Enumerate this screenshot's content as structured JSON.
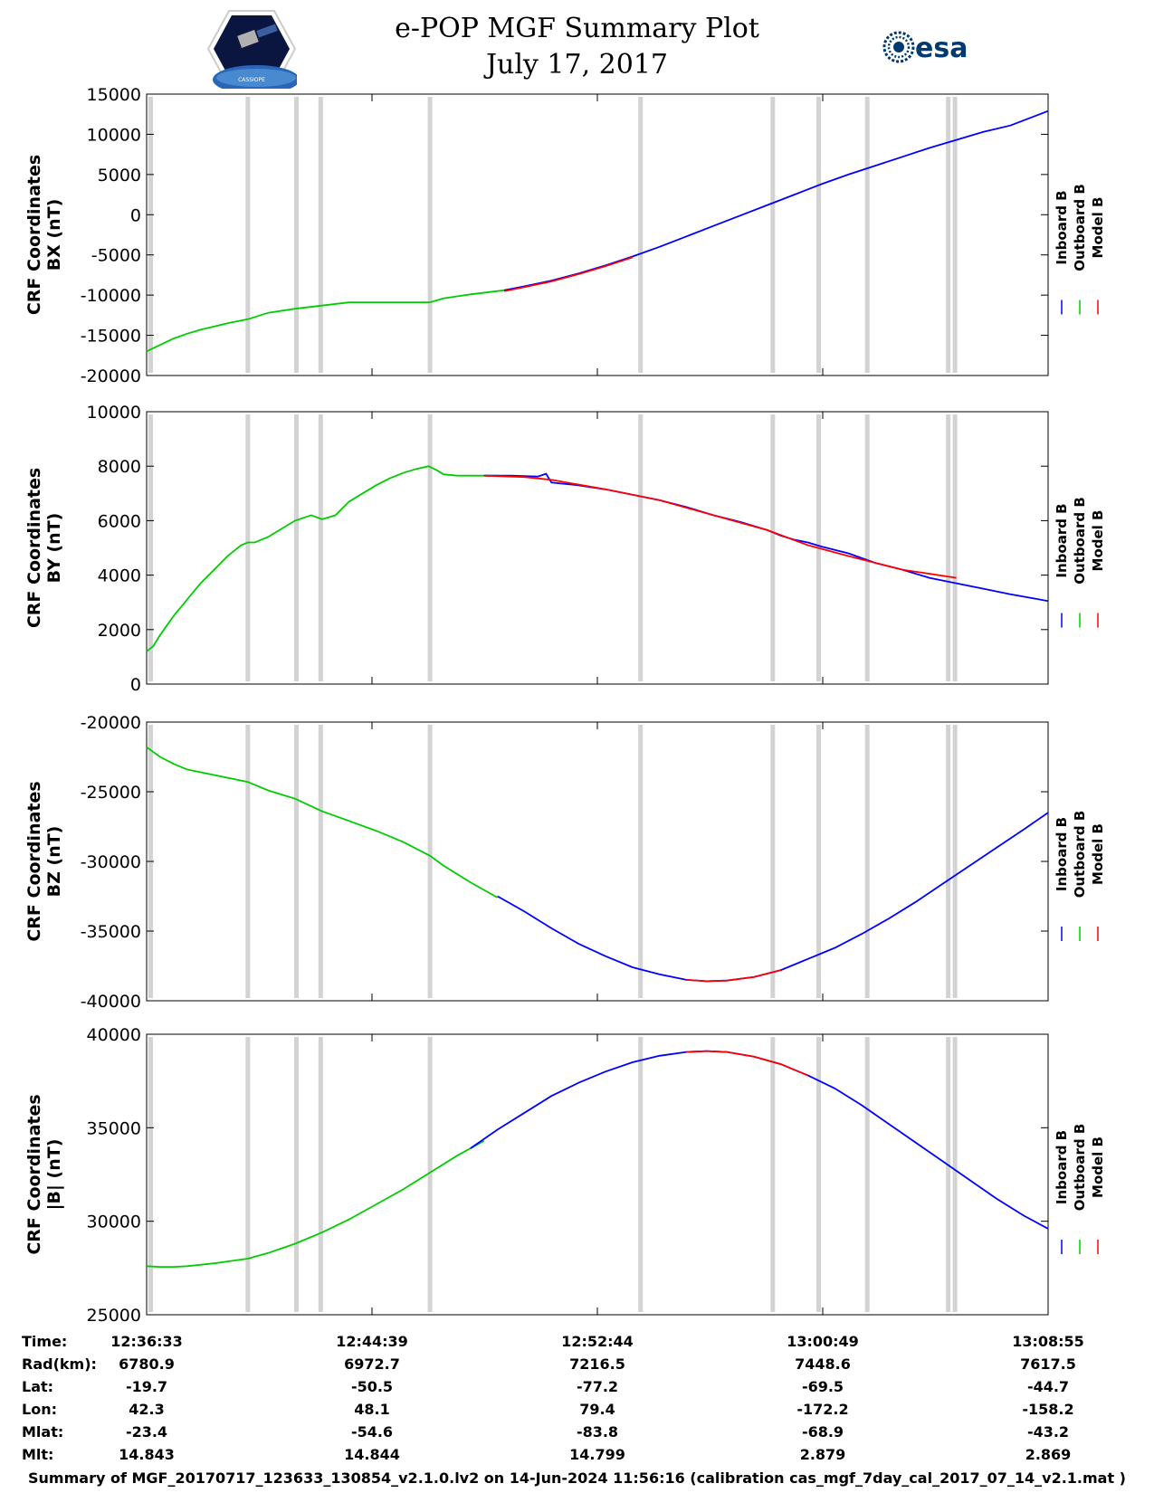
{
  "header": {
    "title": "e-POP MGF Summary Plot",
    "date": "July 17, 2017",
    "esa_logo_text": "esa",
    "mission_logo_text": "CASSIOPE"
  },
  "colors": {
    "inboard": "#0000ff",
    "outboard": "#00cc00",
    "model": "#ff0000",
    "gap": "#d3d3d3"
  },
  "legend": [
    "Inboard B",
    "Outboard B",
    "Model B"
  ],
  "gap_times_min": [
    0.3,
    7.5,
    11.1,
    12.9,
    21.0,
    36.6,
    46.4,
    49.8,
    53.4,
    59.4,
    59.9
  ],
  "chart_data": [
    {
      "type": "line",
      "ylabel_line1": "CRF Coordinates",
      "ylabel_line2": "BX (nT)",
      "ylim": [
        -20000,
        15000
      ],
      "yticks": [
        -20000,
        -15000,
        -10000,
        -5000,
        0,
        5000,
        10000,
        15000
      ],
      "xlim": [
        0,
        66.8
      ],
      "series": [
        {
          "name": "Outboard B",
          "x": [
            0,
            1,
            2,
            3,
            4,
            6,
            7.5,
            9,
            11,
            13,
            15,
            17,
            19,
            21,
            22,
            24,
            26,
            27
          ],
          "y": [
            -17000,
            -16200,
            -15400,
            -14800,
            -14300,
            -13500,
            -13000,
            -12200,
            -11700,
            -11300,
            -10900,
            -10900,
            -10900,
            -10900,
            -10400,
            -9900,
            -9500,
            -9300
          ]
        },
        {
          "name": "Inboard B",
          "x": [
            26.5,
            28,
            30,
            32,
            34,
            36,
            38,
            40,
            42,
            44,
            46,
            48,
            50,
            52,
            54,
            56,
            58,
            60,
            62,
            64,
            66.8
          ],
          "y": [
            -9400,
            -8900,
            -8200,
            -7300,
            -6300,
            -5200,
            -4000,
            -2700,
            -1400,
            -100,
            1200,
            2500,
            3800,
            5000,
            6100,
            7200,
            8300,
            9300,
            10300,
            11100,
            12900
          ]
        },
        {
          "name": "Model B",
          "x": [
            26.5,
            28,
            30,
            32,
            34,
            36
          ],
          "y": [
            -9500,
            -9000,
            -8300,
            -7400,
            -6400,
            -5300
          ]
        }
      ]
    },
    {
      "type": "line",
      "ylabel_line1": "CRF Coordinates",
      "ylabel_line2": "BY (nT)",
      "ylim": [
        0,
        10000
      ],
      "yticks": [
        0,
        2000,
        4000,
        6000,
        8000,
        10000
      ],
      "xlim": [
        0,
        66.8
      ],
      "series": [
        {
          "name": "Outboard B",
          "x": [
            0,
            0.5,
            1,
            2,
            3,
            4,
            5,
            6,
            7,
            7.5,
            8,
            9,
            10,
            11,
            12.2,
            13,
            14,
            15,
            16,
            17,
            18,
            19,
            20,
            20.9,
            21.5,
            22,
            23,
            24,
            25,
            26
          ],
          "y": [
            1200,
            1400,
            1800,
            2500,
            3100,
            3700,
            4200,
            4700,
            5100,
            5200,
            5200,
            5400,
            5700,
            6000,
            6200,
            6050,
            6200,
            6700,
            7000,
            7300,
            7550,
            7750,
            7900,
            8000,
            7850,
            7700,
            7650,
            7650,
            7650,
            7650
          ]
        },
        {
          "name": "Inboard B",
          "x": [
            25,
            27,
            29,
            29.6,
            30,
            32,
            34,
            36,
            38,
            40,
            42,
            44,
            46,
            47,
            48,
            49,
            50,
            52,
            54,
            56,
            58,
            60,
            62,
            64,
            66.8
          ],
          "y": [
            7650,
            7650,
            7620,
            7720,
            7400,
            7300,
            7150,
            6950,
            6750,
            6500,
            6200,
            5950,
            5650,
            5450,
            5300,
            5200,
            5050,
            4800,
            4450,
            4200,
            3900,
            3700,
            3500,
            3300,
            3050
          ]
        },
        {
          "name": "Model B",
          "x": [
            25,
            28,
            30,
            34,
            38,
            42,
            46,
            49,
            52,
            56,
            60
          ],
          "y": [
            7650,
            7600,
            7500,
            7150,
            6750,
            6200,
            5650,
            5100,
            4700,
            4200,
            3900
          ]
        }
      ]
    },
    {
      "type": "line",
      "ylabel_line1": "CRF Coordinates",
      "ylabel_line2": "BZ (nT)",
      "ylim": [
        -40000,
        -20000
      ],
      "yticks": [
        -40000,
        -35000,
        -30000,
        -25000,
        -20000
      ],
      "xlim": [
        0,
        66.8
      ],
      "series": [
        {
          "name": "Outboard B",
          "x": [
            0,
            1,
            2,
            3,
            5,
            7.5,
            9,
            11,
            13,
            15,
            17,
            19,
            21,
            22,
            24,
            26
          ],
          "y": [
            -21800,
            -22500,
            -23000,
            -23400,
            -23800,
            -24300,
            -24900,
            -25500,
            -26400,
            -27100,
            -27800,
            -28600,
            -29600,
            -30300,
            -31500,
            -32600
          ]
        },
        {
          "name": "Inboard B",
          "x": [
            26,
            28,
            30,
            32,
            34,
            36,
            38,
            40,
            41.5,
            43,
            45,
            47,
            49,
            51,
            53,
            55,
            57,
            59,
            61,
            63,
            65,
            66.8
          ],
          "y": [
            -32500,
            -33600,
            -34800,
            -35900,
            -36800,
            -37600,
            -38100,
            -38500,
            -38600,
            -38550,
            -38300,
            -37800,
            -37000,
            -36200,
            -35200,
            -34100,
            -32900,
            -31600,
            -30300,
            -29000,
            -27700,
            -26500
          ]
        },
        {
          "name": "Model B",
          "x": [
            40,
            41.5,
            43,
            45,
            47
          ],
          "y": [
            -38500,
            -38600,
            -38550,
            -38300,
            -37800
          ]
        }
      ]
    },
    {
      "type": "line",
      "ylabel_line1": "CRF Coordinates",
      "ylabel_line2": "|B| (nT)",
      "ylim": [
        25000,
        40000
      ],
      "yticks": [
        25000,
        30000,
        35000,
        40000
      ],
      "xlim": [
        0,
        66.8
      ],
      "series": [
        {
          "name": "Outboard B",
          "x": [
            0,
            1,
            2,
            3,
            5,
            7.5,
            9,
            11,
            13,
            15,
            17,
            19,
            21,
            23,
            25
          ],
          "y": [
            27600,
            27560,
            27560,
            27600,
            27750,
            28000,
            28300,
            28800,
            29400,
            30100,
            30900,
            31700,
            32600,
            33500,
            34300
          ]
        },
        {
          "name": "Inboard B",
          "x": [
            24,
            26,
            28,
            30,
            32,
            34,
            36,
            38,
            40,
            41.5,
            43,
            45,
            47,
            49,
            51,
            53,
            55,
            57,
            59,
            61,
            63,
            65,
            66.8
          ],
          "y": [
            33900,
            34900,
            35800,
            36700,
            37400,
            38000,
            38500,
            38850,
            39050,
            39100,
            39050,
            38800,
            38400,
            37800,
            37100,
            36200,
            35200,
            34200,
            33200,
            32200,
            31200,
            30300,
            29600
          ]
        },
        {
          "name": "Model B",
          "x": [
            40,
            41.5,
            43,
            45,
            47,
            49
          ],
          "y": [
            39050,
            39100,
            39050,
            38800,
            38400,
            37800
          ]
        }
      ]
    }
  ],
  "info_table": {
    "labels": [
      "Time:",
      "Rad(km):",
      "Lat:",
      "Lon:",
      "Mlat:",
      "Mlt:"
    ],
    "columns": [
      [
        "12:36:33",
        "6780.9",
        "-19.7",
        "42.3",
        "-23.4",
        "14.843"
      ],
      [
        "12:44:39",
        "6972.7",
        "-50.5",
        "48.1",
        "-54.6",
        "14.844"
      ],
      [
        "12:52:44",
        "7216.5",
        "-77.2",
        "79.4",
        "-83.8",
        "14.799"
      ],
      [
        "13:00:49",
        "7448.6",
        "-69.5",
        "-172.2",
        "-68.9",
        "2.879"
      ],
      [
        "13:08:55",
        "7617.5",
        "-44.7",
        "-158.2",
        "-43.2",
        "2.869"
      ]
    ]
  },
  "footer": "Summary of MGF_20170717_123633_130854_v2.1.0.lv2 on 14-Jun-2024 11:56:16 (calibration cas_mgf_7day_cal_2017_07_14_v2.1.mat )"
}
